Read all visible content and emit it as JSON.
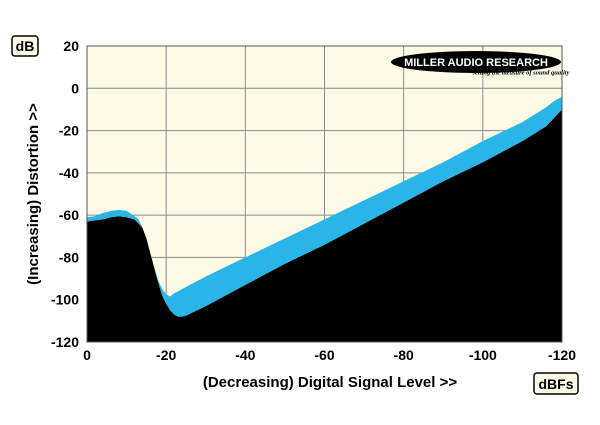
{
  "chart_data": {
    "type": "area",
    "ylabel": "(Increasing) Distortion >>",
    "xlabel": "(Decreasing) Digital Signal Level >>",
    "y_unit": "dB",
    "x_unit": "dBFs",
    "xlim": [
      0,
      -120
    ],
    "ylim": [
      -120,
      20
    ],
    "x_ticks": [
      "0",
      "-20",
      "-40",
      "-60",
      "-80",
      "-100",
      "-120"
    ],
    "y_ticks": [
      "20",
      "0",
      "-20",
      "-40",
      "-60",
      "-80",
      "-100",
      "-120"
    ],
    "grid": true,
    "series": [
      {
        "color": "#29b5e8",
        "upper": [
          [
            0,
            -61
          ],
          [
            2,
            -60.5
          ],
          [
            4,
            -59
          ],
          [
            6,
            -58
          ],
          [
            8,
            -57.5
          ],
          [
            10,
            -58
          ],
          [
            12,
            -60.5
          ],
          [
            13,
            -62
          ],
          [
            14,
            -66
          ],
          [
            15,
            -71
          ],
          [
            16,
            -78
          ],
          [
            17,
            -85
          ],
          [
            18,
            -91
          ],
          [
            19,
            -95
          ],
          [
            20,
            -97.5
          ],
          [
            21,
            -98.5
          ],
          [
            22,
            -97
          ],
          [
            23,
            -96
          ],
          [
            25,
            -94
          ],
          [
            30,
            -89
          ],
          [
            40,
            -80
          ],
          [
            50,
            -71
          ],
          [
            60,
            -62
          ],
          [
            70,
            -53
          ],
          [
            80,
            -44
          ],
          [
            90,
            -35
          ],
          [
            100,
            -25
          ],
          [
            110,
            -16
          ],
          [
            116,
            -9
          ],
          [
            118,
            -6
          ],
          [
            120,
            -4
          ]
        ],
        "lower": [
          [
            0,
            -63
          ],
          [
            2,
            -62.5
          ],
          [
            4,
            -62
          ],
          [
            6,
            -61
          ],
          [
            8,
            -60.5
          ],
          [
            10,
            -61
          ],
          [
            12,
            -62
          ],
          [
            14,
            -66
          ],
          [
            15,
            -71
          ],
          [
            16,
            -78
          ],
          [
            17,
            -85
          ],
          [
            18,
            -92
          ],
          [
            19,
            -98
          ],
          [
            20,
            -102
          ],
          [
            21,
            -105
          ],
          [
            22,
            -107
          ],
          [
            23,
            -108
          ],
          [
            24,
            -108
          ],
          [
            25,
            -107.5
          ],
          [
            30,
            -103
          ],
          [
            40,
            -93
          ],
          [
            50,
            -83
          ],
          [
            60,
            -74
          ],
          [
            70,
            -64
          ],
          [
            80,
            -54
          ],
          [
            90,
            -44
          ],
          [
            100,
            -35
          ],
          [
            110,
            -25
          ],
          [
            116,
            -18
          ],
          [
            118,
            -14
          ],
          [
            120,
            -10
          ]
        ]
      }
    ],
    "colors": {
      "plot_background": "#fdfbe6",
      "fill_below": "#000000",
      "band": "#29b5e8",
      "grid": "#8a8a8a"
    }
  },
  "logo": {
    "name": "MILLER AUDIO RESEARCH",
    "tagline": "setting the measure of sound quality"
  }
}
